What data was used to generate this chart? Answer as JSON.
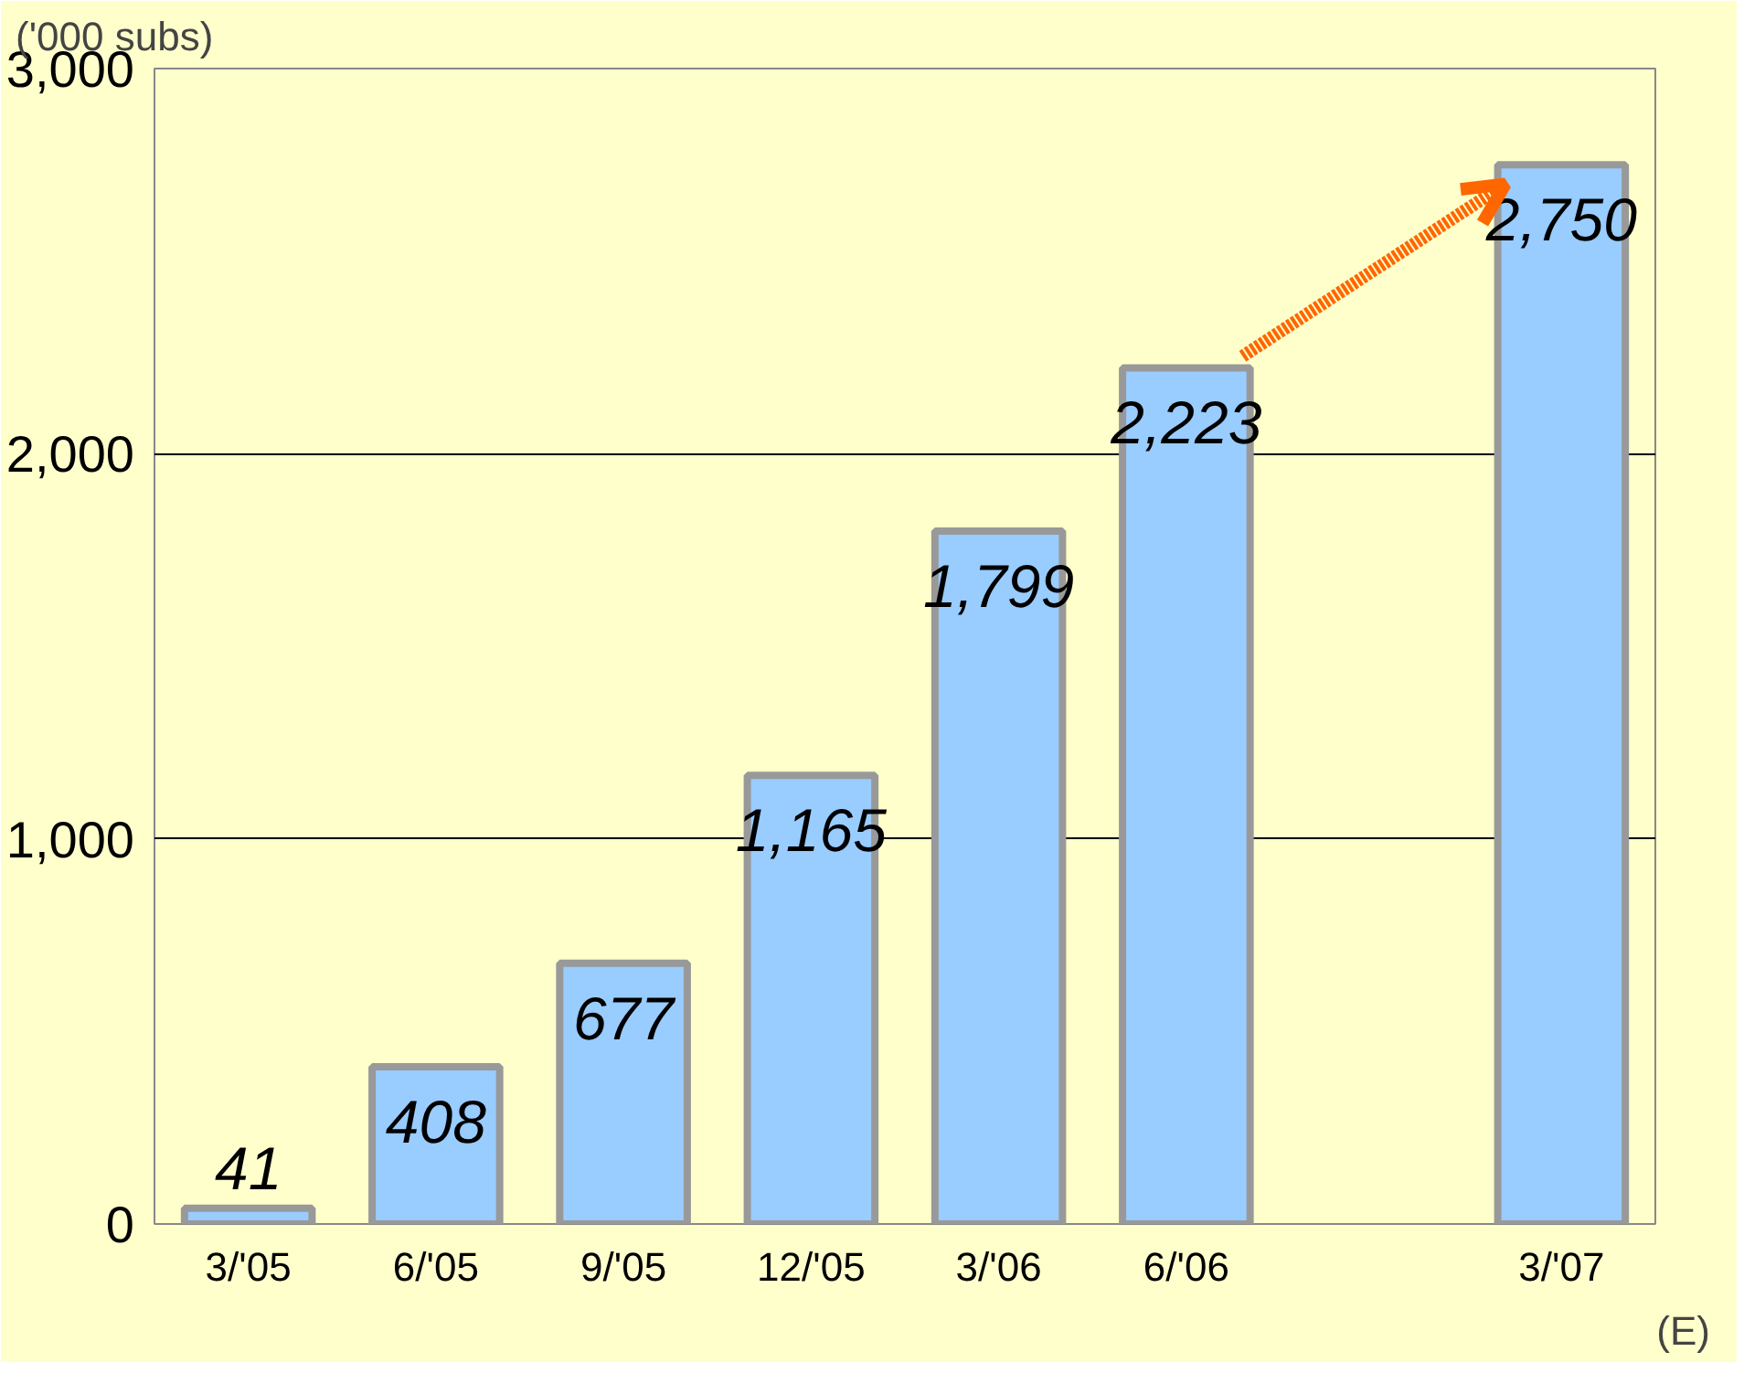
{
  "chart_data": {
    "type": "bar",
    "ylabel": "('000 subs)",
    "categories": [
      "3/'05",
      "6/'05",
      "9/'05",
      "12/'05",
      "3/'06",
      "6/'06",
      null,
      "3/'07"
    ],
    "values": [
      41,
      408,
      677,
      1165,
      1799,
      2223,
      null,
      2750
    ],
    "color": "#99ccff",
    "ylim": [
      0,
      3000
    ],
    "yticks": [
      0,
      {
        "value": 1000,
        "label": "1,000"
      },
      {
        "value": 2000,
        "label": "2,000"
      },
      {
        "value": 3000,
        "label": "3,000"
      }
    ],
    "grid": "y",
    "value_labels": [
      "41",
      "408",
      "677",
      "1,165",
      "1,799",
      "2,223",
      null,
      "2,750"
    ],
    "annotations": [
      "(E)"
    ]
  }
}
